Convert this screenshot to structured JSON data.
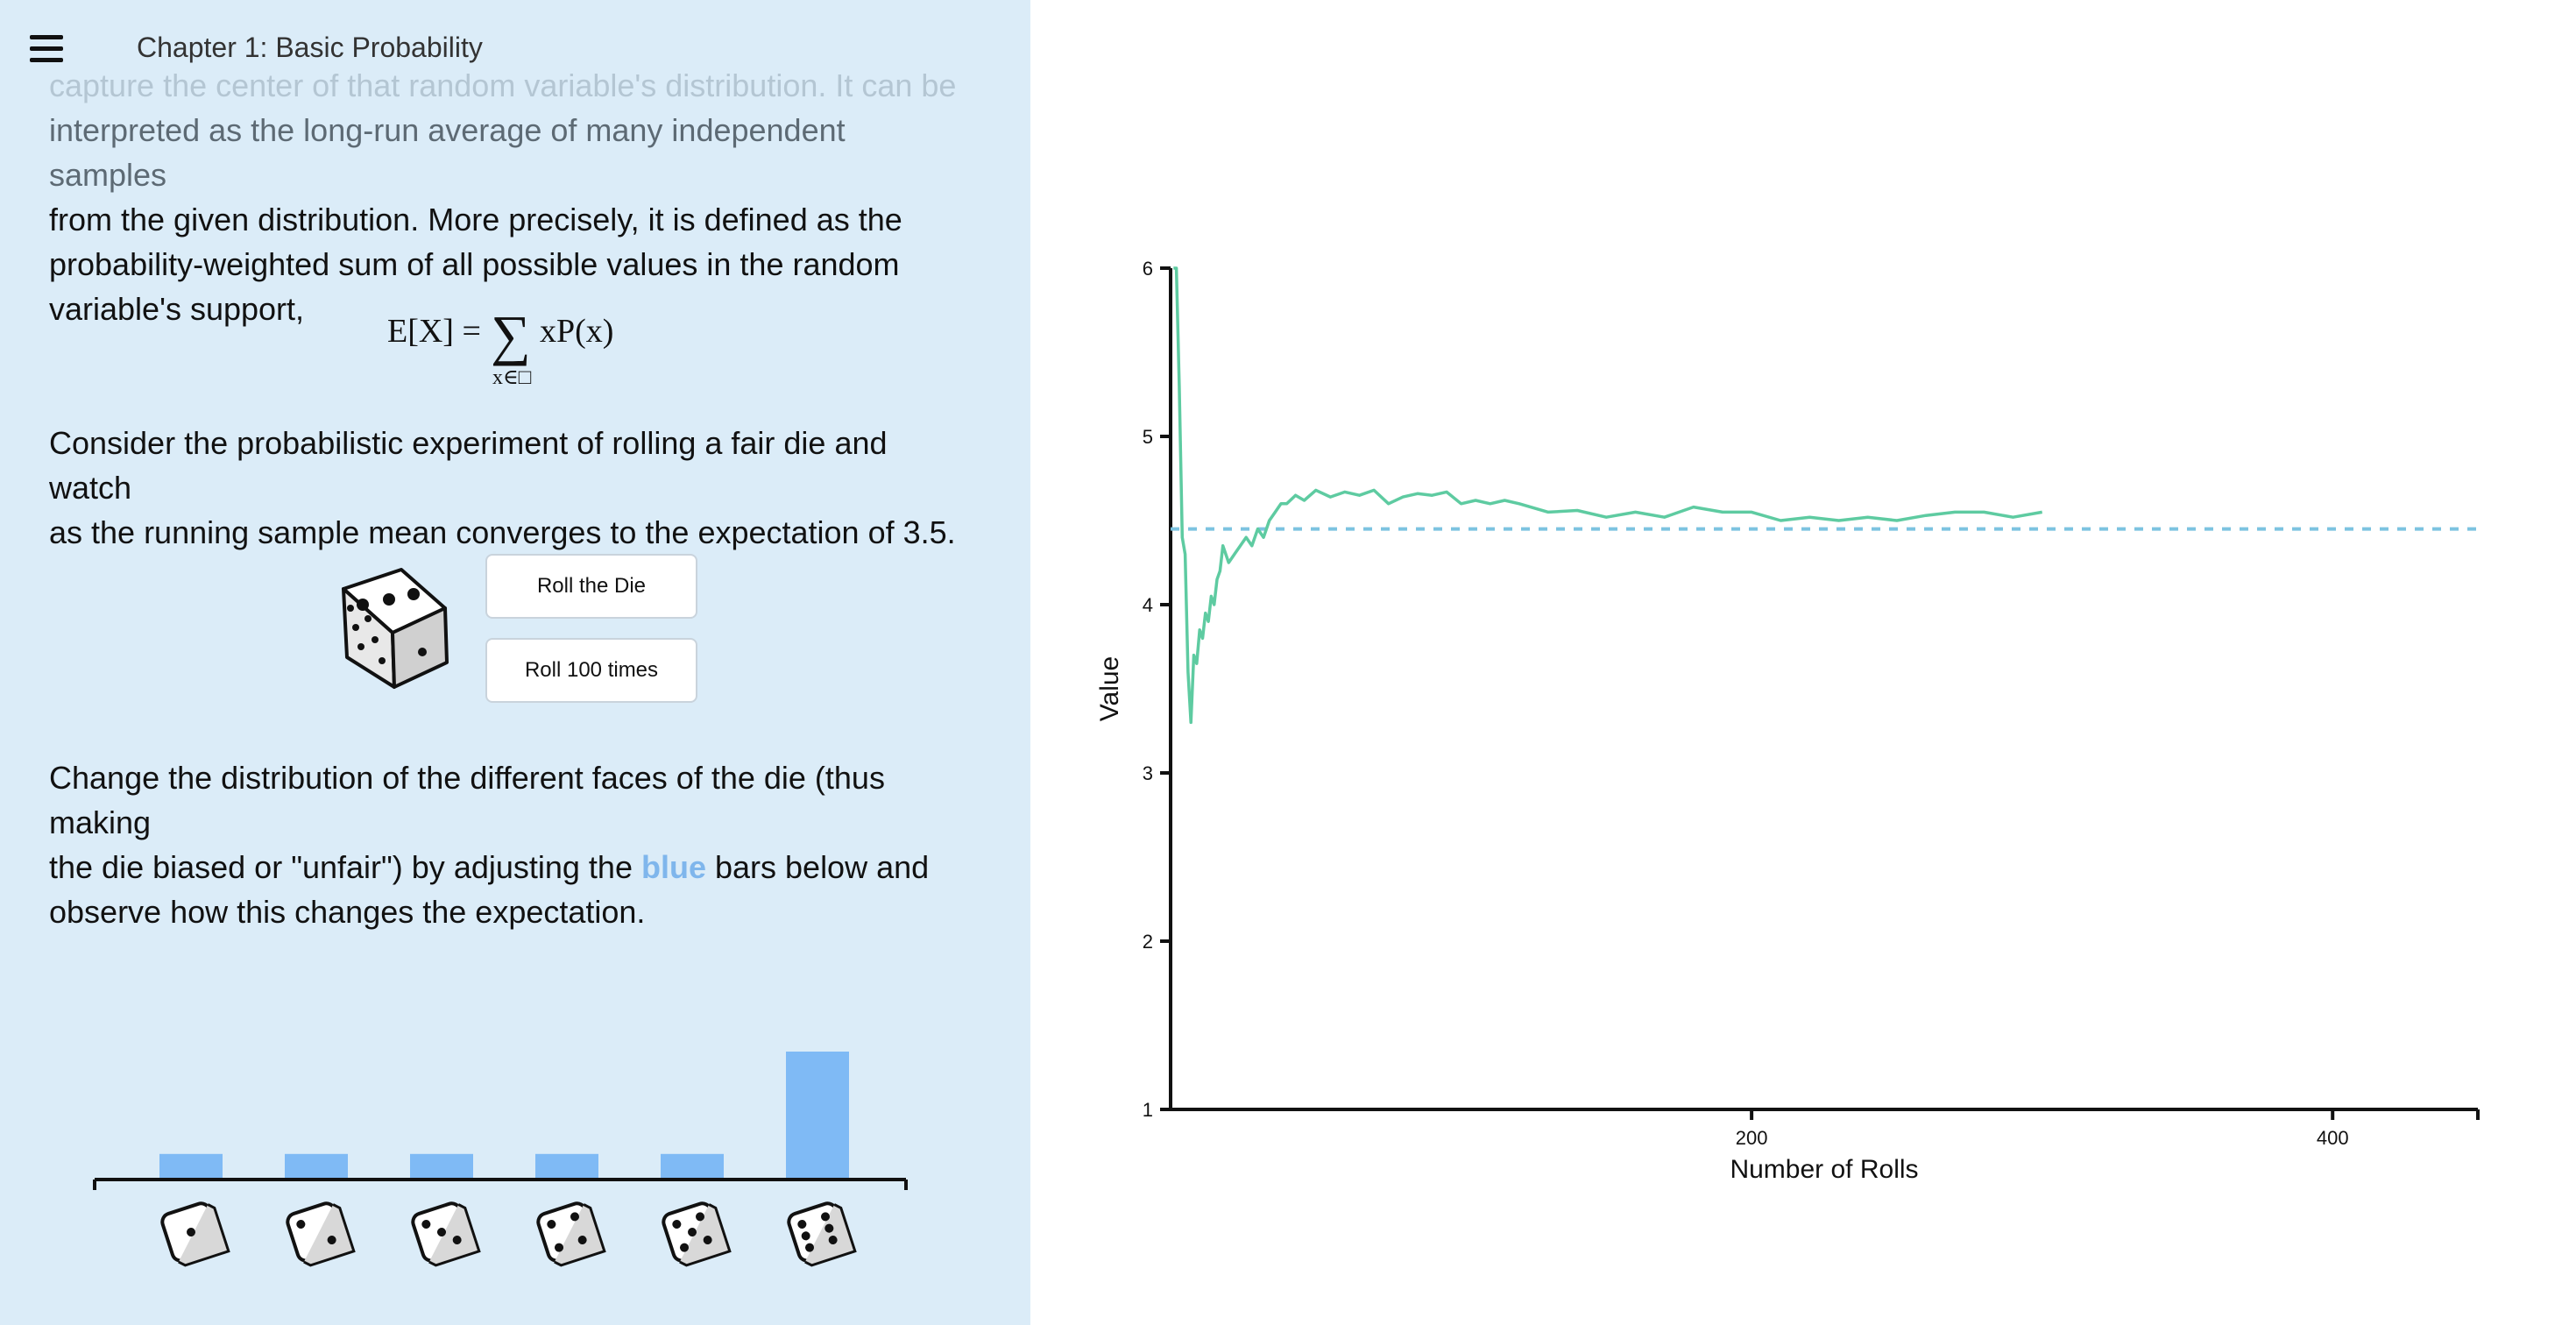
{
  "header": {
    "chapter_title": "Chapter 1: Basic Probability"
  },
  "intro": {
    "line1": "capture the center of that random variable's distribution. It can be",
    "line2": "interpreted as the long-run average of many independent samples",
    "line3": "from the given distribution. More precisely, it is defined as the",
    "line4": "probability-weighted sum of all possible values in the random",
    "line5": "variable's support,"
  },
  "formula": {
    "lhs": "E[X] =",
    "sigma": "∑",
    "subscript": "x∈□",
    "rhs": "xP(x)"
  },
  "experiment": {
    "line1": "Consider the probabilistic experiment of rolling a fair die and watch",
    "line2": "as the running sample mean converges to the expectation of 3.5."
  },
  "controls": {
    "roll_button": "Roll the Die",
    "roll100_button": "Roll 100 times"
  },
  "die": {
    "face_shown": 3
  },
  "change": {
    "line1": "Change the distribution of the different faces of the die (thus making",
    "line2_pre": "the die biased or \"unfair\") by adjusting the ",
    "line2_blue": "blue",
    "line2_post": " bars below and",
    "line3": "observe how this changes the expectation."
  },
  "distribution": {
    "faces": [
      1,
      2,
      3,
      4,
      5,
      6
    ],
    "weights": [
      0.2,
      0.2,
      0.2,
      0.2,
      0.2,
      1.0
    ],
    "bar_color": "#7fbaf5"
  },
  "chart_data": {
    "type": "line",
    "xlabel": "Number of Rolls",
    "ylabel": "Value",
    "xlim": [
      0,
      450
    ],
    "ylim": [
      1,
      6
    ],
    "x_ticks": [
      200,
      400
    ],
    "y_ticks": [
      1,
      2,
      3,
      4,
      5,
      6
    ],
    "expectation_line": {
      "value": 4.45,
      "style": "dashed",
      "color": "#7cc3e0"
    },
    "series": [
      {
        "color": "#5ecba1",
        "x": [
          1,
          2,
          3,
          4,
          5,
          6,
          7,
          8,
          9,
          10,
          11,
          12,
          13,
          14,
          15,
          16,
          17,
          18,
          20,
          22,
          24,
          26,
          28,
          30,
          32,
          34,
          36,
          38,
          40,
          43,
          46,
          50,
          55,
          60,
          65,
          70,
          75,
          80,
          85,
          90,
          95,
          100,
          105,
          110,
          115,
          120,
          130,
          140,
          150,
          160,
          170,
          180,
          190,
          200,
          210,
          220,
          230,
          240,
          250,
          260,
          270,
          280,
          290,
          300
        ],
        "y": [
          6.0,
          6.0,
          5.3,
          4.4,
          4.3,
          3.6,
          3.3,
          3.7,
          3.65,
          3.85,
          3.8,
          3.95,
          3.9,
          4.05,
          4.0,
          4.15,
          4.2,
          4.35,
          4.25,
          4.3,
          4.35,
          4.4,
          4.35,
          4.45,
          4.4,
          4.5,
          4.55,
          4.6,
          4.6,
          4.65,
          4.62,
          4.68,
          4.64,
          4.67,
          4.65,
          4.68,
          4.6,
          4.64,
          4.66,
          4.65,
          4.67,
          4.6,
          4.62,
          4.6,
          4.62,
          4.6,
          4.55,
          4.56,
          4.52,
          4.55,
          4.52,
          4.58,
          4.55,
          4.55,
          4.5,
          4.52,
          4.5,
          4.52,
          4.5,
          4.53,
          4.55,
          4.55,
          4.52,
          4.55
        ]
      }
    ]
  }
}
